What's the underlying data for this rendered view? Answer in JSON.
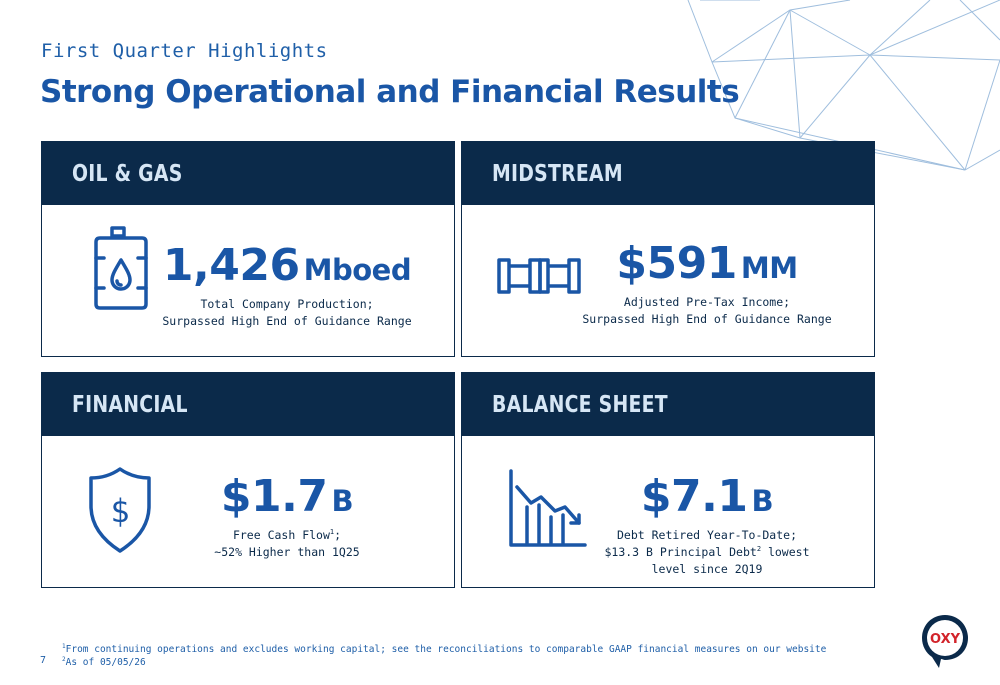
{
  "header": {
    "kicker": "First Quarter Highlights",
    "title": "Strong Operational and Financial Results"
  },
  "cards": [
    {
      "heading": "OIL & GAS",
      "icon": "oil-barrel-icon",
      "value": "1,426",
      "unit": "Mboed",
      "desc_lines": [
        "Total Company Production;",
        "Surpassed High End of Guidance Range"
      ]
    },
    {
      "heading": "MIDSTREAM",
      "icon": "pipeline-icon",
      "value": "$591",
      "unit": "MM",
      "desc_lines": [
        "Adjusted Pre-Tax Income;",
        "Surpassed High End of Guidance Range"
      ]
    },
    {
      "heading": "FINANCIAL",
      "icon": "shield-dollar-icon",
      "value": "$1.7",
      "unit": "B",
      "desc_lines": [
        "Free Cash Flow",
        "~52% Higher than 1Q25"
      ],
      "desc_sup": "1"
    },
    {
      "heading": "BALANCE SHEET",
      "icon": "declining-chart-icon",
      "value": "$7.1",
      "unit": "B",
      "desc_lines": [
        "Debt Retired Year-To-Date;",
        "$13.3 B Principal Debt",
        " lowest",
        "level since 2Q19"
      ],
      "desc_sup": "2"
    }
  ],
  "footnotes": {
    "note1_mark": "1",
    "note1": "From continuing operations and excludes working capital; see the reconciliations to comparable GAAP financial measures on our website",
    "note2_mark": "2",
    "note2": "As of 05/05/26"
  },
  "page_number": "7",
  "logo_text": "OXY",
  "colors": {
    "navy": "#0b2a4a",
    "blue": "#1a56a6",
    "logo_red": "#d2232a"
  }
}
